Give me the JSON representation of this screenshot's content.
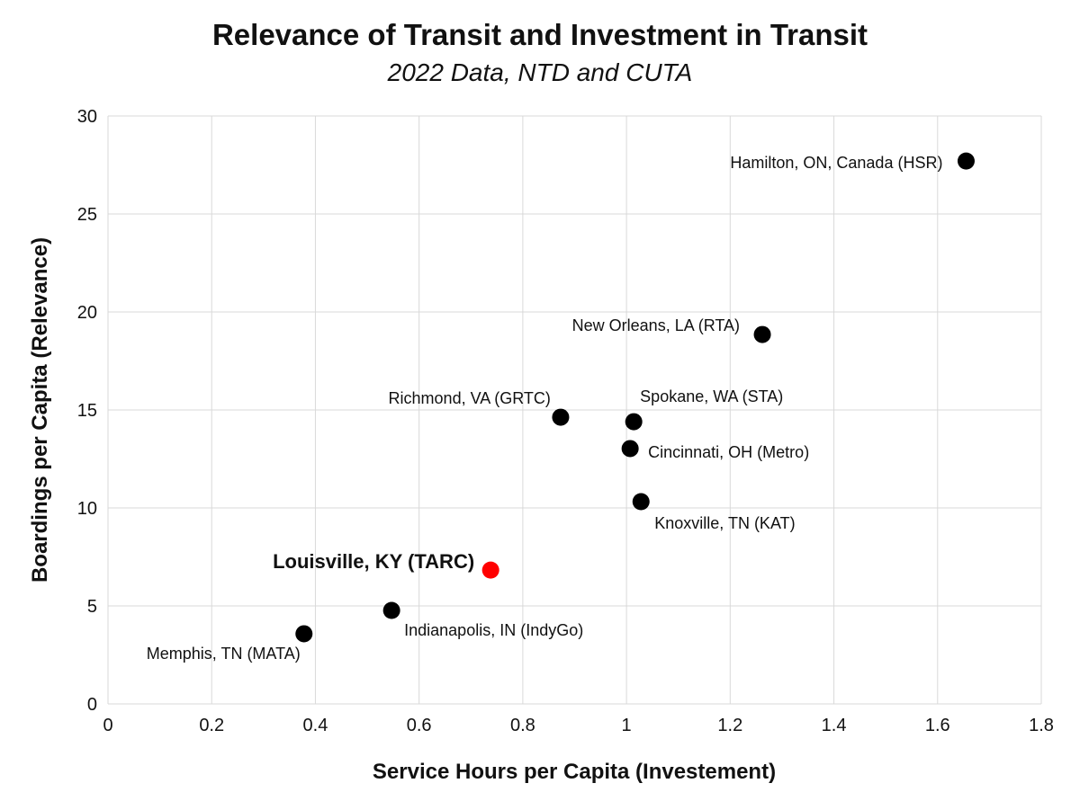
{
  "chart_data": {
    "type": "scatter",
    "title": "Relevance of Transit and Investment in Transit",
    "subtitle": "2022 Data, NTD and CUTA",
    "xlabel": "Service Hours per Capita (Investement)",
    "ylabel": "Boardings per Capita (Relevance)",
    "xlim": [
      0,
      1.8
    ],
    "ylim": [
      0,
      30
    ],
    "xticks": [
      0,
      0.2,
      0.4,
      0.6,
      0.8,
      1,
      1.2,
      1.4,
      1.6,
      1.8
    ],
    "xtick_labels": [
      "0",
      "0.2",
      "0.4",
      "0.6",
      "0.8",
      "1",
      "1.2",
      "1.4",
      "1.6",
      "1.8"
    ],
    "yticks": [
      0,
      5,
      10,
      15,
      20,
      25,
      30
    ],
    "ytick_labels": [
      "0",
      "5",
      "10",
      "15",
      "20",
      "25",
      "30"
    ],
    "grid": true,
    "colors": {
      "default": "#000000",
      "highlight": "#ff0000"
    },
    "points": [
      {
        "label": "Hamilton, ON, Canada (HSR)",
        "x": 1.655,
        "y": 27.7
      },
      {
        "label": "New Orleans, LA (RTA)",
        "x": 1.262,
        "y": 18.85
      },
      {
        "label": "Richmond, VA (GRTC)",
        "x": 0.873,
        "y": 14.63
      },
      {
        "label": "Spokane, WA (STA)",
        "x": 1.014,
        "y": 14.4
      },
      {
        "label": "Cincinnati, OH (Metro)",
        "x": 1.007,
        "y": 13.03
      },
      {
        "label": "Knoxville, TN (KAT)",
        "x": 1.028,
        "y": 10.32
      },
      {
        "label": "Louisville, KY (TARC)",
        "x": 0.738,
        "y": 6.83,
        "highlight": true
      },
      {
        "label": "Indianapolis, IN (IndyGo)",
        "x": 0.547,
        "y": 4.77
      },
      {
        "label": "Memphis, TN (MATA)",
        "x": 0.378,
        "y": 3.58
      }
    ]
  }
}
